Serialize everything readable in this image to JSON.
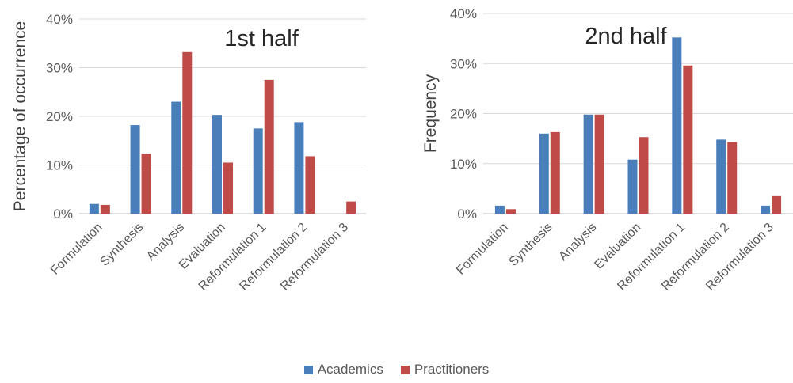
{
  "colors": {
    "academics": "#4a7ebb",
    "practitioners": "#be4b48"
  },
  "legend": [
    {
      "label": "Academics",
      "color": "#4a7ebb"
    },
    {
      "label": "Practitioners",
      "color": "#be4b48"
    }
  ],
  "chart_data": [
    {
      "type": "bar",
      "title": "1st half",
      "ylabel": "Percentage of occurrence",
      "xlabel": "",
      "ylim": [
        0,
        40
      ],
      "yticks": [
        "0%",
        "10%",
        "20%",
        "30%",
        "40%"
      ],
      "grid": true,
      "categories": [
        "Formulation",
        "Synthesis",
        "Analysis",
        "Evaluation",
        "Reformulation 1",
        "Reformulation 2",
        "Reformulation 3"
      ],
      "series": [
        {
          "name": "Academics",
          "values": [
            2.0,
            18.2,
            23.0,
            20.3,
            17.5,
            18.8,
            0
          ]
        },
        {
          "name": "Practitioners",
          "values": [
            1.8,
            12.3,
            33.2,
            10.5,
            27.5,
            11.8,
            2.5
          ]
        }
      ]
    },
    {
      "type": "bar",
      "title": "2nd half",
      "ylabel": "Frequency",
      "xlabel": "",
      "ylim": [
        0,
        40
      ],
      "yticks": [
        "0%",
        "10%",
        "20%",
        "30%",
        "40%"
      ],
      "grid": true,
      "categories": [
        "Formulation",
        "Synthesis",
        "Analysis",
        "Evaluation",
        "Reformulation 1",
        "Reformulation 2",
        "Reformulation 3"
      ],
      "series": [
        {
          "name": "Academics",
          "values": [
            1.6,
            16.0,
            19.8,
            10.8,
            35.2,
            14.8,
            1.6
          ]
        },
        {
          "name": "Practitioners",
          "values": [
            0.9,
            16.3,
            19.8,
            15.3,
            29.6,
            14.3,
            3.5
          ]
        }
      ]
    }
  ]
}
